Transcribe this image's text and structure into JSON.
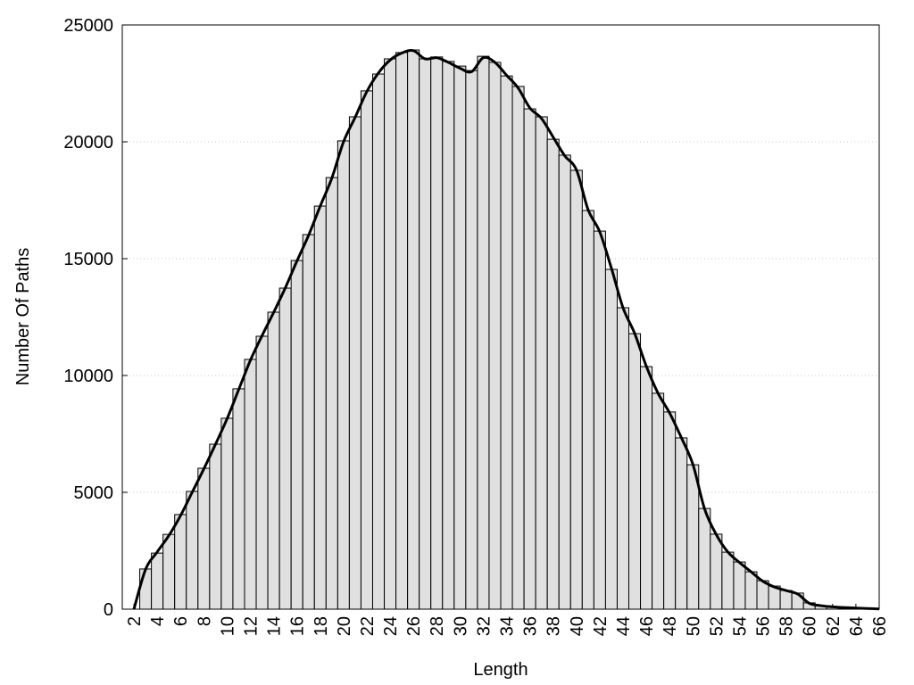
{
  "chart_data": {
    "type": "bar",
    "xlabel": "Length",
    "ylabel": "Number Of Paths",
    "xlim": [
      1,
      66
    ],
    "ylim": [
      0,
      25000
    ],
    "xticks": [
      2,
      4,
      6,
      8,
      10,
      12,
      14,
      16,
      18,
      20,
      22,
      24,
      26,
      28,
      30,
      32,
      34,
      36,
      38,
      40,
      42,
      44,
      46,
      48,
      50,
      52,
      54,
      56,
      58,
      60,
      62,
      64,
      66
    ],
    "yticks": [
      0,
      5000,
      10000,
      15000,
      20000,
      25000
    ],
    "grid": true,
    "series": [
      {
        "type": "bar",
        "color": "#e0e0e0",
        "x": [
          3,
          4,
          5,
          6,
          7,
          8,
          9,
          10,
          11,
          12,
          13,
          14,
          15,
          16,
          17,
          18,
          19,
          20,
          21,
          22,
          23,
          24,
          25,
          26,
          27,
          28,
          29,
          30,
          31,
          32,
          33,
          34,
          35,
          36,
          37,
          38,
          39,
          40,
          41,
          42,
          43,
          44,
          45,
          46,
          47,
          48,
          49,
          50,
          51,
          52,
          53,
          54,
          55,
          56,
          57,
          58,
          59,
          60,
          61,
          62,
          63,
          64,
          65
        ],
        "values": [
          1720,
          2400,
          3200,
          4050,
          5040,
          6030,
          7060,
          8170,
          9430,
          10690,
          11680,
          12710,
          13740,
          14920,
          16030,
          17250,
          18470,
          20040,
          21070,
          22180,
          22900,
          23550,
          23820,
          23930,
          23550,
          23630,
          23440,
          23240,
          23050,
          23660,
          23400,
          22820,
          22370,
          21410,
          21070,
          20110,
          19430,
          18780,
          17060,
          16180,
          14540,
          12900,
          11790,
          10380,
          9240,
          8440,
          7330,
          6180,
          4310,
          3210,
          2440,
          2020,
          1600,
          1220,
          990,
          800,
          690,
          270,
          150,
          110,
          80,
          60,
          40
        ]
      },
      {
        "type": "line",
        "color": "#000000",
        "x": [
          2,
          3,
          4,
          5,
          6,
          7,
          8,
          9,
          10,
          11,
          12,
          13,
          14,
          15,
          16,
          17,
          18,
          19,
          20,
          21,
          22,
          23,
          24,
          25,
          26,
          27,
          28,
          29,
          30,
          31,
          32,
          33,
          34,
          35,
          36,
          37,
          38,
          39,
          40,
          41,
          42,
          43,
          44,
          45,
          46,
          47,
          48,
          49,
          50,
          51,
          52,
          53,
          54,
          55,
          56,
          57,
          58,
          59,
          60,
          61,
          62,
          63,
          64,
          65,
          66
        ],
        "values": [
          0,
          1700,
          2450,
          3150,
          4000,
          5000,
          6000,
          7050,
          8150,
          9400,
          10650,
          11700,
          12700,
          13750,
          14900,
          16000,
          17250,
          18450,
          20000,
          21050,
          22150,
          22950,
          23500,
          23800,
          23900,
          23550,
          23600,
          23400,
          23150,
          23000,
          23600,
          23400,
          22850,
          22300,
          21450,
          21000,
          20200,
          19400,
          18800,
          17100,
          16150,
          14600,
          12900,
          11800,
          10400,
          9250,
          8400,
          7350,
          6200,
          4300,
          3200,
          2450,
          2000,
          1600,
          1200,
          950,
          800,
          650,
          250,
          150,
          100,
          70,
          50,
          30,
          10
        ]
      }
    ]
  }
}
